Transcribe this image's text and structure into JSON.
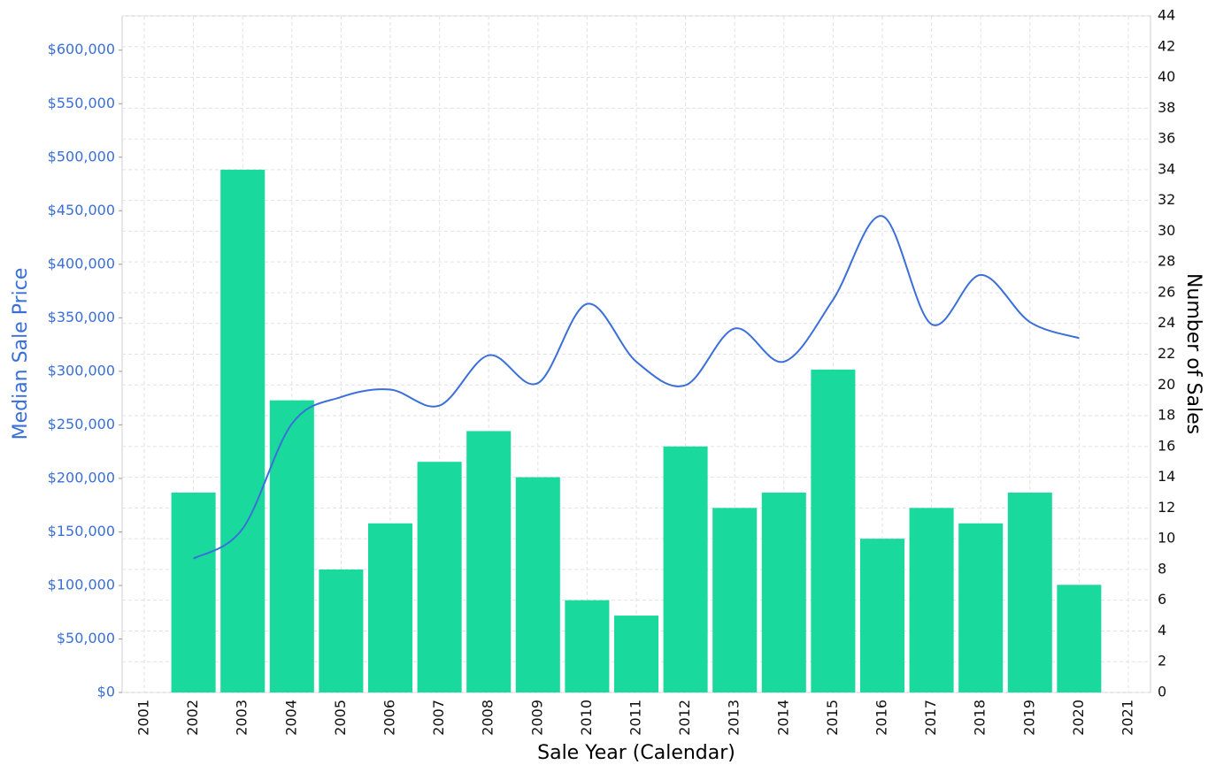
{
  "chart_data": {
    "type": "combo",
    "x_label": "Sale Year (Calendar)",
    "y_label": "Median Sale Price",
    "y2_label": "Number of Sales",
    "x": [
      2002,
      2003,
      2004,
      2005,
      2006,
      2007,
      2008,
      2009,
      2010,
      2011,
      2012,
      2013,
      2014,
      2015,
      2016,
      2017,
      2018,
      2019,
      2020
    ],
    "xlim": [
      2000.55,
      2021.45
    ],
    "xticks": [
      2001,
      2002,
      2003,
      2004,
      2005,
      2006,
      2007,
      2008,
      2009,
      2010,
      2011,
      2012,
      2013,
      2014,
      2015,
      2016,
      2017,
      2018,
      2019,
      2020,
      2021
    ],
    "ylim": [
      0,
      632000
    ],
    "yticks": [
      {
        "value": 0,
        "label": "$0"
      },
      {
        "value": 50000,
        "label": "$50,000"
      },
      {
        "value": 100000,
        "label": "$100,000"
      },
      {
        "value": 150000,
        "label": "$150,000"
      },
      {
        "value": 200000,
        "label": "$200,000"
      },
      {
        "value": 250000,
        "label": "$250,000"
      },
      {
        "value": 300000,
        "label": "$300,000"
      },
      {
        "value": 350000,
        "label": "$350,000"
      },
      {
        "value": 400000,
        "label": "$400,000"
      },
      {
        "value": 450000,
        "label": "$450,000"
      },
      {
        "value": 500000,
        "label": "$500,000"
      },
      {
        "value": 550000,
        "label": "$550,000"
      },
      {
        "value": 600000,
        "label": "$600,000"
      }
    ],
    "y2lim": [
      0,
      44
    ],
    "y2ticks": [
      0,
      2,
      4,
      6,
      8,
      10,
      12,
      14,
      16,
      18,
      20,
      22,
      24,
      26,
      28,
      30,
      32,
      34,
      36,
      38,
      40,
      42,
      44
    ],
    "grid": true,
    "y_label_color": "#3a6fd8",
    "series": [
      {
        "type": "bar",
        "axis": "y2",
        "color": "#19d99c",
        "values": [
          13,
          34,
          19,
          8,
          11,
          15,
          17,
          14,
          6,
          5,
          16,
          12,
          13,
          21,
          10,
          12,
          11,
          13,
          7
        ]
      },
      {
        "type": "line",
        "color": "#3b6fd9",
        "values": [
          125000,
          153000,
          251000,
          276000,
          283000,
          268000,
          315000,
          289000,
          363000,
          309000,
          287000,
          340000,
          309000,
          367000,
          445000,
          344000,
          390000,
          346000,
          331000
        ]
      }
    ]
  }
}
